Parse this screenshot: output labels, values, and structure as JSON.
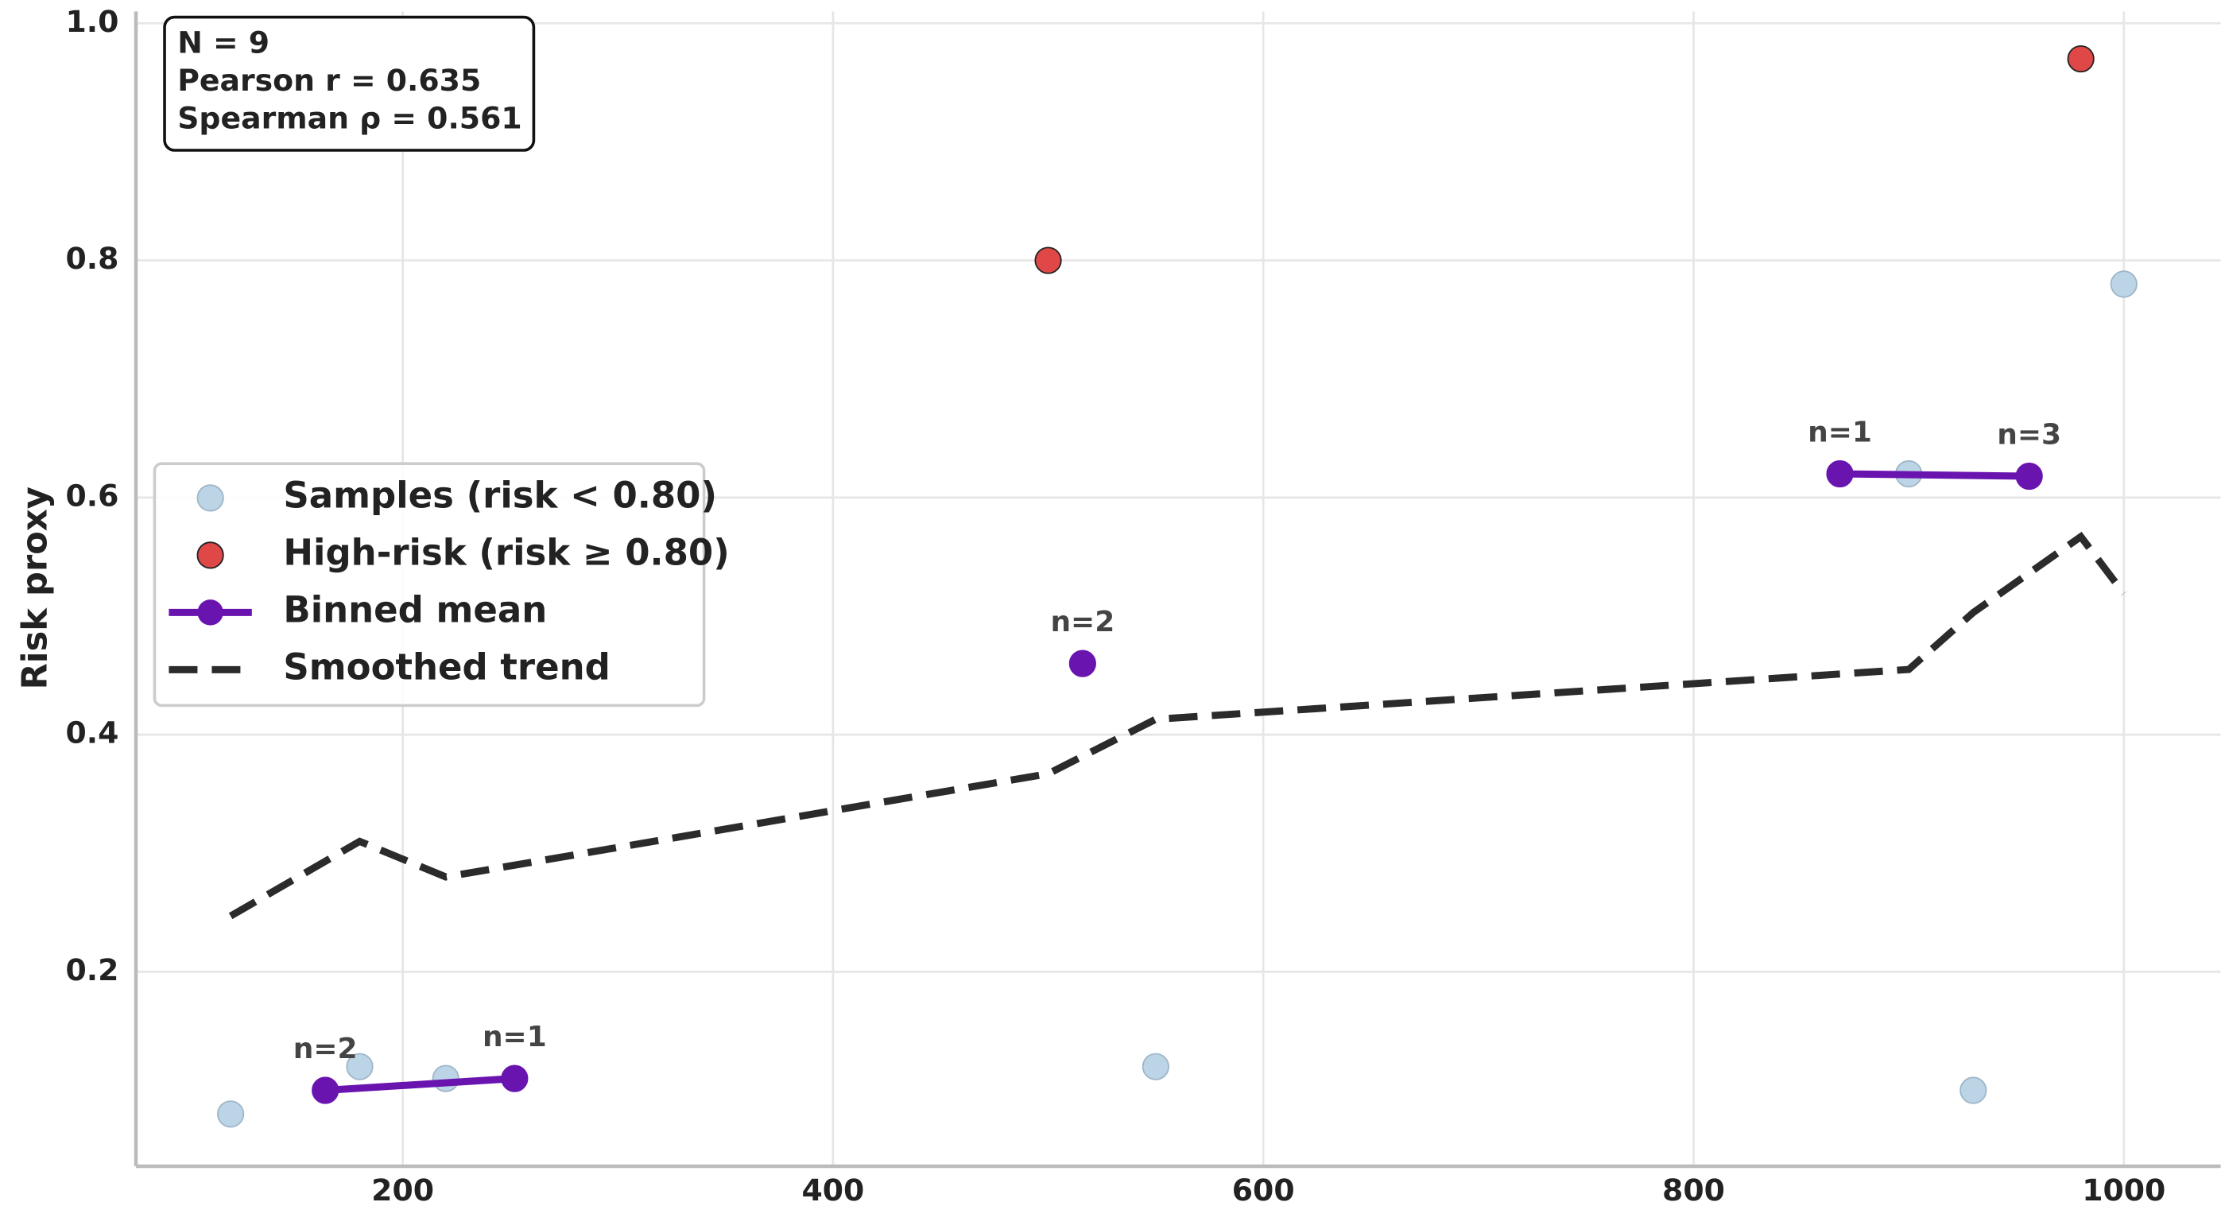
{
  "chart_data": {
    "type": "scatter",
    "y_label": "Risk proxy",
    "xlim": [
      76,
      1045
    ],
    "ylim": [
      0.036,
      1.01
    ],
    "xticks": [
      200,
      400,
      600,
      800,
      1000
    ],
    "yticks": [
      0.2,
      0.4,
      0.6,
      0.8,
      {
        "value": 1,
        "label": "1.0"
      }
    ],
    "grid": true,
    "legend_position": "center left",
    "stats_text": [
      "N = 9",
      "Pearson r = 0.635",
      "Spearman ρ = 0.561"
    ],
    "series": [
      {
        "name": "Samples (risk < 0.80)",
        "color": "#bcd5e6",
        "style": "points",
        "x": [
          120,
          180,
          220,
          550,
          900,
          930,
          1000
        ],
        "values": [
          0.08,
          0.12,
          0.11,
          0.12,
          0.62,
          0.1,
          0.78
        ]
      },
      {
        "name": "High-risk (risk ≥ 0.80)",
        "color": "#e04848",
        "style": "points",
        "x": [
          500,
          980
        ],
        "values": [
          0.8,
          0.97
        ]
      },
      {
        "name": "Binned mean",
        "color": "#6a14b0",
        "style": "line-markers",
        "x": [
          164,
          252,
          null,
          516,
          null,
          868,
          956
        ],
        "values": [
          0.1,
          0.11,
          null,
          0.46,
          null,
          0.62,
          0.618
        ],
        "point_labels": [
          "n=2",
          "n=1",
          null,
          "n=2",
          null,
          "n=1",
          "n=3"
        ]
      },
      {
        "name": "Smoothed trend",
        "color": "#2b2b2b",
        "style": "dashed-line",
        "x": [
          120,
          180,
          220,
          500,
          550,
          900,
          930,
          980,
          1000
        ],
        "values": [
          0.247,
          0.31,
          0.28,
          0.367,
          0.413,
          0.455,
          0.503,
          0.567,
          0.519
        ]
      }
    ]
  }
}
